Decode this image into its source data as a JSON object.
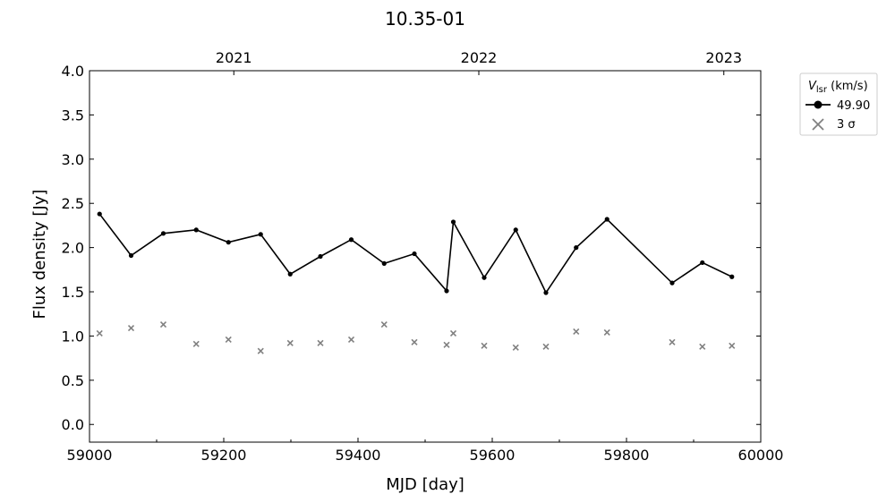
{
  "chart_data": {
    "type": "line",
    "title": "10.35-01",
    "xlabel": "MJD [day]",
    "ylabel": "Flux density [Jy]",
    "xlim": [
      59000,
      60000
    ],
    "ylim": [
      -0.2,
      4.0
    ],
    "x_ticks": [
      59000,
      59200,
      59400,
      59600,
      59800,
      60000
    ],
    "y_ticks": [
      0.0,
      0.5,
      1.0,
      1.5,
      2.0,
      2.5,
      3.0,
      3.5,
      4.0
    ],
    "y_tick_labels": [
      "0.0",
      "0.5",
      "1.0",
      "1.5",
      "2.0",
      "2.5",
      "3.0",
      "3.5",
      "4.0"
    ],
    "top_axis": {
      "ticks": [
        {
          "label": "2021",
          "mjd": 59215
        },
        {
          "label": "2022",
          "mjd": 59580
        },
        {
          "label": "2023",
          "mjd": 59945
        }
      ]
    },
    "legend": {
      "title": "V_lsr (km/s)",
      "position": "outside-right-top"
    },
    "series": [
      {
        "name": "49.90",
        "color": "#000000",
        "marker": "circle",
        "x": [
          59015,
          59062,
          59110,
          59159,
          59207,
          59255,
          59299,
          59344,
          59390,
          59439,
          59484,
          59532,
          59542,
          59588,
          59635,
          59680,
          59725,
          59771,
          59868,
          59913,
          59957
        ],
        "y": [
          2.38,
          1.91,
          2.16,
          2.2,
          2.06,
          2.15,
          1.7,
          1.9,
          2.09,
          1.82,
          1.93,
          1.51,
          2.29,
          1.66,
          2.2,
          1.49,
          2.0,
          2.32,
          1.6,
          1.83,
          1.67
        ]
      },
      {
        "name": "3 σ",
        "color": "#808080",
        "marker": "x",
        "x": [
          59015,
          59062,
          59110,
          59159,
          59207,
          59255,
          59299,
          59344,
          59390,
          59439,
          59484,
          59532,
          59542,
          59588,
          59635,
          59680,
          59725,
          59771,
          59868,
          59913,
          59957
        ],
        "y": [
          1.03,
          1.09,
          1.13,
          0.91,
          0.96,
          0.83,
          0.92,
          0.92,
          0.96,
          1.13,
          0.93,
          0.9,
          1.03,
          0.89,
          0.87,
          0.88,
          1.05,
          1.04,
          0.93,
          0.88,
          0.89
        ]
      }
    ]
  }
}
